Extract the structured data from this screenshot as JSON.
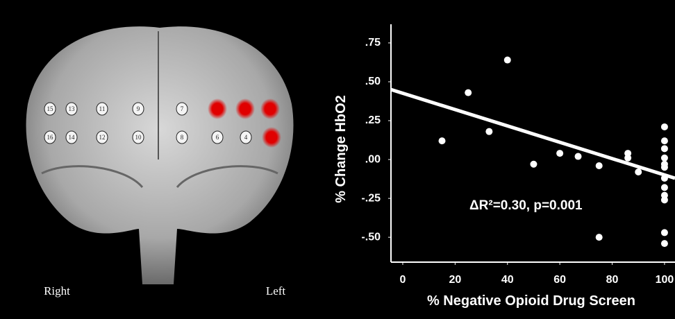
{
  "brain": {
    "channels": [
      {
        "label": "15"
      },
      {
        "label": "13"
      },
      {
        "label": "11"
      },
      {
        "label": "9"
      },
      {
        "label": "7"
      },
      {
        "label": "16"
      },
      {
        "label": "14"
      },
      {
        "label": "12"
      },
      {
        "label": "10"
      },
      {
        "label": "8"
      },
      {
        "label": "6"
      },
      {
        "label": "4"
      }
    ],
    "right_label": "Right",
    "left_label": "Left"
  },
  "chart_data": {
    "type": "scatter",
    "annotation": "ΔR²=0.30, p=0.001",
    "x_label": "% Negative Opioid Drug Screen",
    "y_label": "% Change HbO2",
    "color": "#ffffff",
    "x": [
      15,
      25,
      33,
      40,
      50,
      60,
      67,
      75,
      75,
      86,
      86,
      90,
      100,
      100,
      100,
      100,
      100,
      100,
      100,
      100,
      100,
      100,
      100,
      100
    ],
    "y": [
      0.12,
      0.43,
      0.18,
      0.64,
      -0.03,
      0.04,
      0.02,
      -0.04,
      -0.5,
      0.04,
      0.01,
      -0.08,
      0.21,
      0.12,
      0.07,
      0.01,
      -0.03,
      -0.05,
      -0.12,
      -0.18,
      -0.23,
      -0.26,
      -0.47,
      -0.54
    ],
    "trend_line": {
      "x": [
        -4.5,
        104
      ],
      "y": [
        0.45,
        -0.12
      ]
    },
    "xlim": [
      -4.5,
      104
    ],
    "ylim": [
      -0.66,
      0.87
    ],
    "xticks": [
      0,
      20,
      40,
      60,
      80,
      100
    ],
    "yticks": [
      {
        "value": 0.75,
        "label": ".75"
      },
      {
        "value": 0.5,
        "label": ".50"
      },
      {
        "value": 0.25,
        "label": ".25"
      },
      {
        "value": 0,
        "label": ".00"
      },
      {
        "value": -0.25,
        "label": "-.25"
      },
      {
        "value": -0.5,
        "label": "-.50"
      }
    ]
  }
}
